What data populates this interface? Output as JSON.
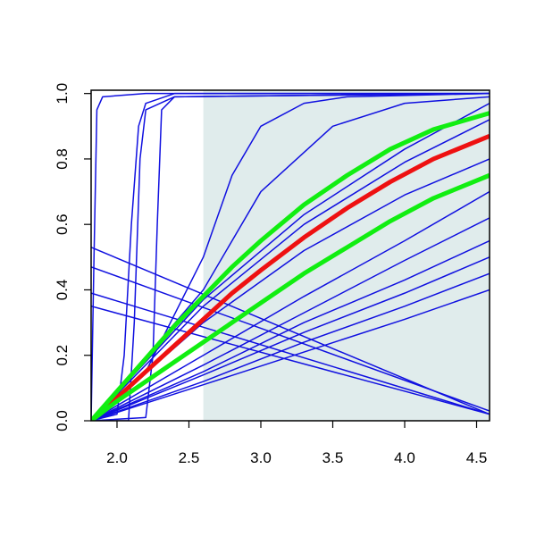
{
  "chart_data": {
    "type": "line",
    "xlim": [
      1.82,
      4.59
    ],
    "ylim": [
      0,
      1.01
    ],
    "xticks": [
      {
        "value": 2,
        "label": "2.0"
      },
      2.5,
      {
        "value": 3,
        "label": "3.0"
      },
      3.5,
      {
        "value": 4,
        "label": "4.0"
      },
      4.5
    ],
    "yticks": [
      {
        "value": 0,
        "label": "0.0"
      },
      0.2,
      0.4,
      0.6,
      0.8,
      {
        "value": 1,
        "label": "1.0"
      }
    ],
    "shade_xlim": [
      2.6,
      4.59
    ],
    "shade_color": "#e0ecec",
    "series": [
      {
        "color": "#1010e0",
        "width": 1.5,
        "x": [
          1.82,
          1.84,
          1.86,
          1.9,
          2.2,
          4.59
        ],
        "values": [
          0,
          0.5,
          0.95,
          0.99,
          1,
          1
        ]
      },
      {
        "color": "#1010e0",
        "width": 1.5,
        "x": [
          1.82,
          2.0,
          2.05,
          2.1,
          2.15,
          2.2,
          2.4,
          4.59
        ],
        "values": [
          0,
          0.02,
          0.2,
          0.6,
          0.9,
          0.97,
          1,
          1
        ]
      },
      {
        "color": "#1010e0",
        "width": 1.5,
        "x": [
          1.82,
          2.08,
          2.12,
          2.16,
          2.2,
          2.4,
          4.59
        ],
        "values": [
          0,
          0,
          0.3,
          0.8,
          0.95,
          0.99,
          1
        ]
      },
      {
        "color": "#1010e0",
        "width": 1.5,
        "x": [
          1.82,
          2.2,
          2.25,
          2.28,
          2.31,
          2.4,
          4.59
        ],
        "values": [
          0,
          0.01,
          0.2,
          0.6,
          0.95,
          0.99,
          1
        ]
      },
      {
        "color": "#1010e0",
        "width": 1.5,
        "x": [
          1.82,
          2.2,
          2.6,
          2.8,
          3.0,
          3.3,
          3.6,
          4.59
        ],
        "values": [
          0,
          0.15,
          0.5,
          0.75,
          0.9,
          0.97,
          0.99,
          1
        ]
      },
      {
        "color": "#1010e0",
        "width": 1.5,
        "x": [
          1.82,
          2.6,
          3.0,
          3.5,
          4.0,
          4.59
        ],
        "values": [
          0,
          0.4,
          0.7,
          0.9,
          0.97,
          0.99
        ]
      },
      {
        "color": "#1010e0",
        "width": 1.5,
        "x": [
          1.82,
          4.59
        ],
        "values": [
          0.53,
          0.02
        ]
      },
      {
        "color": "#1010e0",
        "width": 1.5,
        "x": [
          1.82,
          4.59
        ],
        "values": [
          0.47,
          0.03
        ]
      },
      {
        "color": "#1010e0",
        "width": 1.5,
        "x": [
          1.82,
          4.59
        ],
        "values": [
          0.39,
          0.02
        ]
      },
      {
        "color": "#1010e0",
        "width": 1.5,
        "x": [
          1.82,
          4.59
        ],
        "values": [
          0.35,
          0.02
        ]
      },
      {
        "color": "#1010e0",
        "width": 1.5,
        "x": [
          1.82,
          2.6,
          3.3,
          4.0,
          4.59
        ],
        "values": [
          0,
          0.37,
          0.63,
          0.83,
          0.97
        ]
      },
      {
        "color": "#1010e0",
        "width": 1.5,
        "x": [
          1.82,
          2.6,
          3.3,
          4.0,
          4.59
        ],
        "values": [
          0,
          0.35,
          0.6,
          0.79,
          0.92
        ]
      },
      {
        "color": "#1010e0",
        "width": 1.5,
        "x": [
          1.82,
          2.6,
          3.3,
          4.0,
          4.59
        ],
        "values": [
          0,
          0.3,
          0.52,
          0.69,
          0.8
        ]
      },
      {
        "color": "#1010e0",
        "width": 1.5,
        "x": [
          1.82,
          2.6,
          3.3,
          4.0,
          4.59
        ],
        "values": [
          0,
          0.2,
          0.38,
          0.55,
          0.7
        ]
      },
      {
        "color": "#1010e0",
        "width": 1.5,
        "x": [
          1.82,
          2.6,
          3.3,
          4.0,
          4.59
        ],
        "values": [
          0,
          0.17,
          0.33,
          0.49,
          0.62
        ]
      },
      {
        "color": "#1010e0",
        "width": 1.5,
        "x": [
          1.82,
          2.6,
          3.3,
          4.0,
          4.59
        ],
        "values": [
          0,
          0.15,
          0.3,
          0.43,
          0.55
        ]
      },
      {
        "color": "#1010e0",
        "width": 1.5,
        "x": [
          1.82,
          2.6,
          3.3,
          4.0,
          4.59
        ],
        "values": [
          0,
          0.14,
          0.27,
          0.39,
          0.5
        ]
      },
      {
        "color": "#1010e0",
        "width": 1.5,
        "x": [
          1.82,
          2.6,
          3.3,
          4.0,
          4.59
        ],
        "values": [
          0,
          0.12,
          0.24,
          0.35,
          0.45
        ]
      },
      {
        "color": "#1010e0",
        "width": 1.5,
        "x": [
          1.82,
          2.6,
          3.3,
          4.0,
          4.59
        ],
        "values": [
          0,
          0.11,
          0.21,
          0.31,
          0.4
        ]
      },
      {
        "color": "#ee1111",
        "width": 5,
        "x": [
          1.82,
          2.0,
          2.2,
          2.4,
          2.6,
          2.8,
          3.0,
          3.3,
          3.6,
          3.9,
          4.2,
          4.59
        ],
        "values": [
          0,
          0.07,
          0.15,
          0.23,
          0.31,
          0.39,
          0.46,
          0.56,
          0.65,
          0.73,
          0.8,
          0.87
        ]
      },
      {
        "color": "#11ee11",
        "width": 5,
        "x": [
          1.82,
          2.0,
          2.2,
          2.4,
          2.6,
          2.8,
          3.0,
          3.3,
          3.6,
          3.9,
          4.2,
          4.59
        ],
        "values": [
          0,
          0.09,
          0.19,
          0.29,
          0.38,
          0.47,
          0.55,
          0.66,
          0.75,
          0.83,
          0.89,
          0.94
        ]
      },
      {
        "color": "#11ee11",
        "width": 5,
        "x": [
          1.82,
          2.0,
          2.2,
          2.4,
          2.6,
          2.8,
          3.0,
          3.3,
          3.6,
          3.9,
          4.2,
          4.59
        ],
        "values": [
          0,
          0.06,
          0.12,
          0.18,
          0.24,
          0.3,
          0.36,
          0.45,
          0.53,
          0.61,
          0.68,
          0.75
        ]
      }
    ]
  }
}
